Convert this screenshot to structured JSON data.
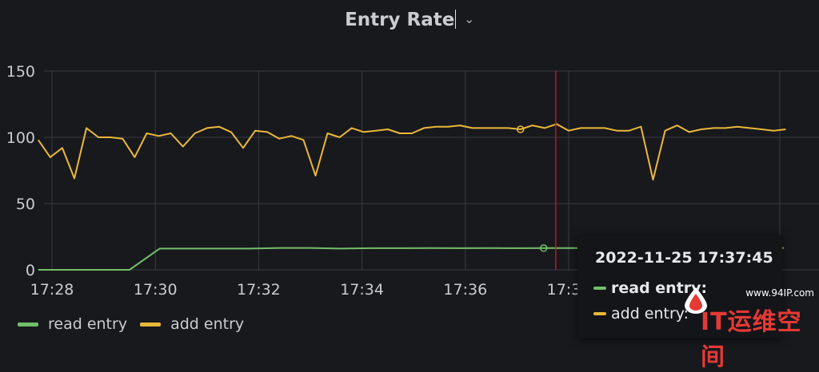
{
  "title": "Entry Rate",
  "colors": {
    "read_entry": "#73bf69",
    "add_entry": "#eab839",
    "cursor": "#c4161c",
    "grid": "#3a3c42",
    "axis_text": "#c9ccd1"
  },
  "chart_data": {
    "type": "line",
    "title": "Entry Rate",
    "xlabel": "",
    "ylabel": "",
    "x_ticks": [
      "17:28",
      "17:30",
      "17:32",
      "17:34",
      "17:36",
      "17:38"
    ],
    "y_ticks": [
      0,
      50,
      100,
      150
    ],
    "ylim": [
      0,
      150
    ],
    "xlim_minutes_since": [
      "17:28",
      "17:42.4"
    ],
    "grid": true,
    "legend_position": "bottom-left",
    "series": [
      {
        "name": "read entry",
        "color": "#73bf69",
        "x": [
          "17:27:44",
          "17:28:20",
          "17:28:55",
          "17:29:30",
          "17:30:05",
          "17:30:40",
          "17:31:15",
          "17:31:50",
          "17:32:25",
          "17:33:00",
          "17:33:35",
          "17:34:10",
          "17:34:45",
          "17:35:20",
          "17:35:55",
          "17:36:30",
          "17:37:05",
          "17:37:40",
          "17:38:15",
          "17:38:50",
          "17:39:25",
          "17:40:00",
          "17:40:35",
          "17:41:10",
          "17:41:45",
          "17:42:10"
        ],
        "y": [
          0,
          0,
          0,
          0,
          16,
          16,
          16,
          16,
          16.5,
          16.5,
          16,
          16.3,
          16.3,
          16.4,
          16.3,
          16.4,
          16.3,
          16.4,
          16.4,
          16.4,
          16.4,
          16.4,
          16.4,
          16.5,
          16.5,
          16.5
        ]
      },
      {
        "name": "add entry",
        "color": "#eab839",
        "x": [
          "17:27:44",
          "17:27:58",
          "17:28:12",
          "17:28:26",
          "17:28:40",
          "17:28:54",
          "17:29:08",
          "17:29:22",
          "17:29:36",
          "17:29:50",
          "17:30:04",
          "17:30:18",
          "17:30:32",
          "17:30:46",
          "17:31:00",
          "17:31:14",
          "17:31:28",
          "17:31:42",
          "17:31:56",
          "17:32:10",
          "17:32:24",
          "17:32:38",
          "17:32:52",
          "17:33:06",
          "17:33:20",
          "17:33:34",
          "17:33:48",
          "17:34:02",
          "17:34:16",
          "17:34:30",
          "17:34:44",
          "17:34:58",
          "17:35:12",
          "17:35:26",
          "17:35:40",
          "17:35:54",
          "17:36:08",
          "17:36:22",
          "17:36:36",
          "17:36:50",
          "17:37:04",
          "17:37:18",
          "17:37:32",
          "17:37:46",
          "17:38:00",
          "17:38:14",
          "17:38:28",
          "17:38:42",
          "17:38:56",
          "17:39:10",
          "17:39:24",
          "17:39:38",
          "17:39:52",
          "17:40:06",
          "17:40:20",
          "17:40:34",
          "17:40:48",
          "17:41:02",
          "17:41:16",
          "17:41:30",
          "17:41:44",
          "17:41:58",
          "17:42:12"
        ],
        "y": [
          98,
          85,
          92,
          69,
          107,
          100,
          100,
          99,
          85,
          103,
          101,
          103,
          93,
          103,
          107,
          108,
          104,
          92,
          105,
          104,
          99,
          101,
          98,
          71,
          103,
          100,
          107,
          104,
          105,
          106,
          103,
          103,
          107,
          108,
          108,
          109,
          107,
          107,
          107,
          107,
          106,
          109,
          107,
          110,
          105,
          107,
          107,
          107,
          105,
          105,
          108,
          68,
          105,
          109,
          104,
          106,
          107,
          107,
          108,
          107,
          106,
          105,
          106
        ]
      }
    ],
    "cursor_time": "17:37:45"
  },
  "legend": [
    {
      "label": "read entry",
      "color": "#73bf69"
    },
    {
      "label": "add entry",
      "color": "#eab839"
    }
  ],
  "tooltip": {
    "time": "2022-11-25 17:37:45",
    "rows": [
      {
        "label": "read entry:",
        "color": "#73bf69"
      },
      {
        "label": "add entry:",
        "color": "#eab839"
      }
    ]
  },
  "watermark": {
    "url": "www.94IP.com",
    "text": "IT运维空间"
  }
}
